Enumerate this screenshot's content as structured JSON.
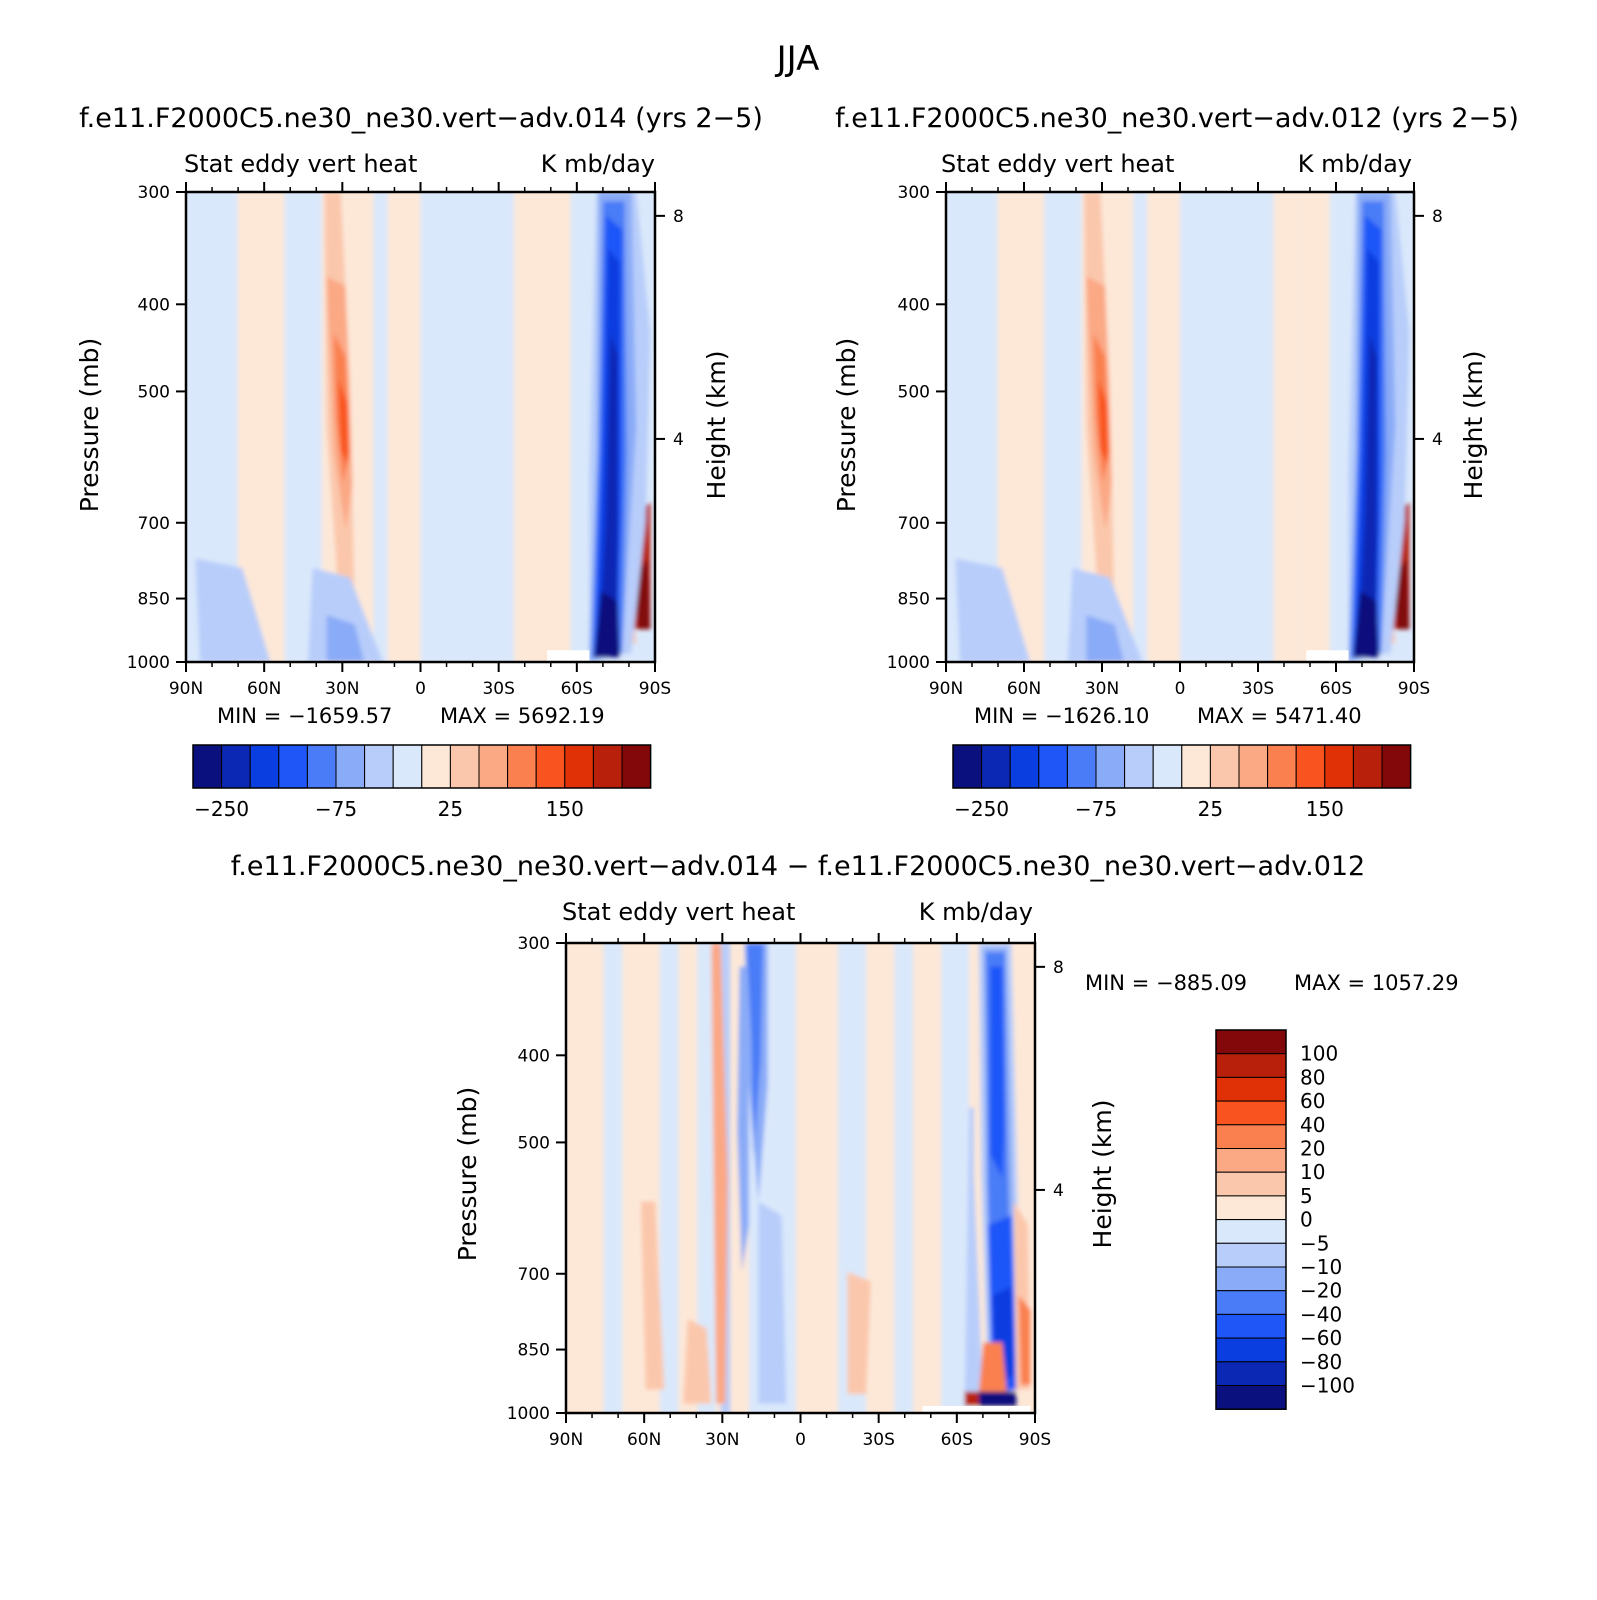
{
  "figure": {
    "title": "JJA",
    "colors": {
      "blues": [
        "#0a107e",
        "#0b28b4",
        "#0b3ee0",
        "#1e56f8",
        "#4a7cf7",
        "#8aabf7",
        "#b8cdfa",
        "#dae8fb"
      ],
      "reds": [
        "#fde8d8",
        "#fbc7ac",
        "#fba885",
        "#fa8050",
        "#f9541f",
        "#e03006",
        "#b8200c",
        "#82080a"
      ]
    }
  },
  "panels": [
    {
      "header": "f.e11.F2000C5.ne30_ne30.vert−adv.014 (yrs 2−5)",
      "subtitle_left": "Stat eddy vert heat",
      "subtitle_right": "K mb/day",
      "ylabel": "Pressure (mb)",
      "ylabel_right": "Height (km)",
      "min_text": "MIN = −1659.57",
      "max_text": "MAX = 5692.19",
      "colorbar_labels": [
        "−250",
        "−75",
        "25",
        "150"
      ]
    },
    {
      "header": "f.e11.F2000C5.ne30_ne30.vert−adv.012 (yrs 2−5)",
      "subtitle_left": "Stat eddy vert heat",
      "subtitle_right": "K mb/day",
      "ylabel": "Pressure (mb)",
      "ylabel_right": "Height (km)",
      "min_text": "MIN = −1626.10",
      "max_text": "MAX = 5471.40",
      "colorbar_labels": [
        "−250",
        "−75",
        "25",
        "150"
      ]
    },
    {
      "header": "f.e11.F2000C5.ne30_ne30.vert−adv.014 − f.e11.F2000C5.ne30_ne30.vert−adv.012",
      "subtitle_left": "Stat eddy vert heat",
      "subtitle_right": "K mb/day",
      "ylabel": "Pressure (mb)",
      "ylabel_right": "Height (km)",
      "min_text": "MIN = −885.09",
      "max_text": "MAX = 1057.29",
      "colorbar_labels": [
        "100",
        "80",
        "60",
        "40",
        "20",
        "10",
        "5",
        "0",
        "−5",
        "−10",
        "−20",
        "−40",
        "−60",
        "−80",
        "−100"
      ]
    }
  ],
  "chart_data": [
    {
      "type": "heatmap",
      "title": "Stat eddy vert heat",
      "units": "K mb/day",
      "x_ticks": [
        "90N",
        "60N",
        "30N",
        "0",
        "30S",
        "60S",
        "90S"
      ],
      "y_ticks": [
        "300",
        "400",
        "500",
        "700",
        "850",
        "1000"
      ],
      "y_right_ticks": [
        "8",
        "4"
      ],
      "ylim": [
        1000,
        300
      ],
      "xlim": [
        "90N",
        "90S"
      ],
      "min": -1659.57,
      "max": 5692.19
    },
    {
      "type": "heatmap",
      "title": "Stat eddy vert heat",
      "units": "K mb/day",
      "x_ticks": [
        "90N",
        "60N",
        "30N",
        "0",
        "30S",
        "60S",
        "90S"
      ],
      "y_ticks": [
        "300",
        "400",
        "500",
        "700",
        "850",
        "1000"
      ],
      "y_right_ticks": [
        "8",
        "4"
      ],
      "ylim": [
        1000,
        300
      ],
      "xlim": [
        "90N",
        "90S"
      ],
      "min": -1626.1,
      "max": 5471.4
    },
    {
      "type": "heatmap",
      "title": "Stat eddy vert heat",
      "units": "K mb/day",
      "x_ticks": [
        "90N",
        "60N",
        "30N",
        "0",
        "30S",
        "60S",
        "90S"
      ],
      "y_ticks": [
        "300",
        "400",
        "500",
        "700",
        "850",
        "1000"
      ],
      "y_right_ticks": [
        "8",
        "4"
      ],
      "ylim": [
        1000,
        300
      ],
      "xlim": [
        "90N",
        "90S"
      ],
      "min": -885.09,
      "max": 1057.29
    }
  ]
}
